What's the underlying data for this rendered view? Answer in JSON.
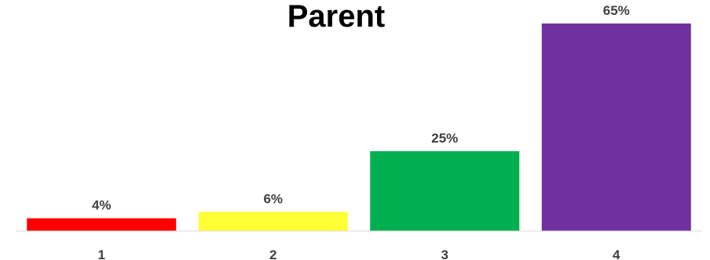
{
  "chart_data": {
    "type": "bar",
    "title": "Parent",
    "categories": [
      "1",
      "2",
      "3",
      "4"
    ],
    "values": [
      4,
      6,
      25,
      65
    ],
    "value_labels": [
      "4%",
      "6%",
      "25%",
      "65%"
    ],
    "colors": [
      "#ff0000",
      "#ffff33",
      "#00b050",
      "#7030a0"
    ],
    "ylim": [
      0,
      65
    ],
    "grid": false,
    "legend": "none"
  }
}
